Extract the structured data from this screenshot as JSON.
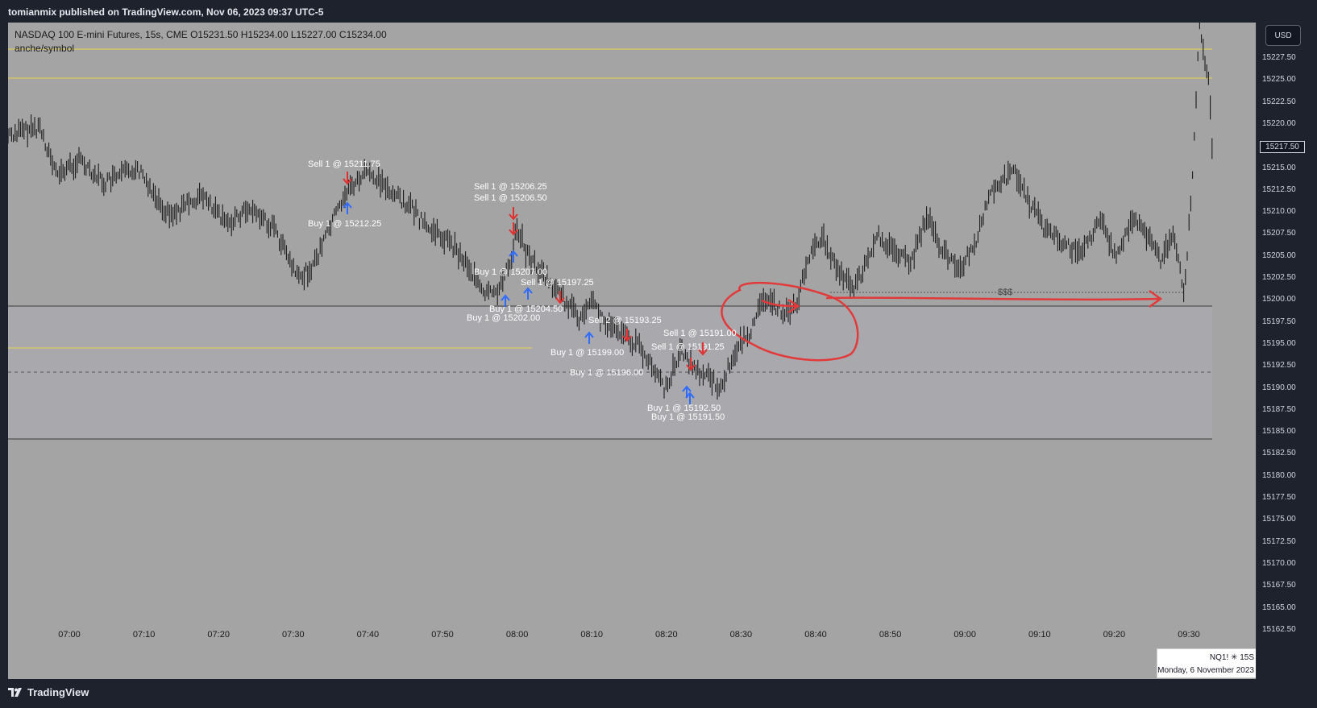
{
  "header": {
    "published_text": "tomianmix published on TradingView.com, Nov 06, 2023 09:37 UTC-5"
  },
  "legend": {
    "symbol_line": "NASDAQ 100 E-mini Futures, 15s, CME  O15231.50  H15234.00  L15227.00  C15234.00",
    "indicator_line": "anche/symbol"
  },
  "price_scale": {
    "currency": "USD",
    "current_price": "15217.50",
    "ticks": [
      "15227.50",
      "15225.00",
      "15222.50",
      "15220.00",
      "15215.00",
      "15212.50",
      "15210.00",
      "15207.50",
      "15205.00",
      "15202.50",
      "15200.00",
      "15197.50",
      "15195.00",
      "15192.50",
      "15190.00",
      "15187.50",
      "15185.00",
      "15182.50",
      "15180.00",
      "15177.50",
      "15175.00",
      "15172.50",
      "15170.00",
      "15167.50",
      "15165.00",
      "15162.50"
    ]
  },
  "time_scale": {
    "ticks": [
      "07:00",
      "07:10",
      "07:20",
      "07:30",
      "07:40",
      "07:50",
      "08:00",
      "08:10",
      "08:20",
      "08:30",
      "08:40",
      "08:50",
      "09:00",
      "09:10",
      "09:20",
      "09:30"
    ]
  },
  "trade_labels": [
    "Sell 1 @ 15211.75",
    "Buy 1 @ 15212.25",
    "Sell 1 @ 15206.25",
    "Sell 1 @ 15206.50",
    "Buy 1 @ 15207.00",
    "Sell 1 @ 15197.25",
    "Buy 1 @ 15204.50",
    "Buy 1 @ 15202.00",
    "Sell 2 @ 15193.25",
    "Buy 1 @ 15199.00",
    "Sell 1 @ 15191.00",
    "Sell 1 @ 15191.25",
    "Buy 1 @ 15196.00",
    "Buy 1 @ 15192.50",
    "Buy 1 @ 15191.50"
  ],
  "annotation": {
    "liquidity_label": "$$$"
  },
  "watermark": {
    "symbol": "NQ1! ✳ 15S",
    "date": "Monday, 6 November 2023"
  },
  "footer": {
    "brand": "TradingView"
  },
  "colors": {
    "chart_bg": "#a4a4a4",
    "zone_bg": "#a9a9ad",
    "candle": "#1a1a1a",
    "yellow_level": "#e8d44d",
    "sell_arrow": "#e03030",
    "buy_arrow": "#2f6bff",
    "drawing_red": "#e23a3a",
    "dark_ui": "#1e222d"
  }
}
